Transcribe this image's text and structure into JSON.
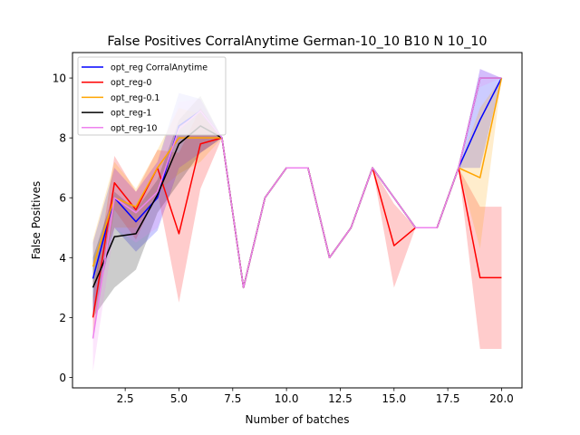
{
  "chart_data": {
    "type": "line",
    "title": "False Positives CorralAnytime German-10_10 B10 N 10_10",
    "xlabel": "Number of batches",
    "ylabel": "False Positives",
    "xlim": [
      0.05,
      20.95
    ],
    "ylim": [
      -0.35,
      10.85
    ],
    "xticks": [
      2.5,
      5.0,
      7.5,
      10.0,
      12.5,
      15.0,
      17.5,
      20.0
    ],
    "xtick_labels": [
      "2.5",
      "5.0",
      "7.5",
      "10.0",
      "12.5",
      "15.0",
      "17.5",
      "20.0"
    ],
    "yticks": [
      0,
      2,
      4,
      6,
      8,
      10
    ],
    "ytick_labels": [
      "0",
      "2",
      "4",
      "6",
      "8",
      "10"
    ],
    "grid": false,
    "legend_position": "top-left",
    "series": [
      {
        "name": "opt_reg CorralAnytime",
        "color": "#0000ff",
        "x": [
          1,
          2,
          3,
          4,
          5,
          6,
          7,
          8,
          9,
          10,
          11,
          12,
          13,
          14,
          15,
          16,
          17,
          18,
          19,
          20
        ],
        "values": [
          3.3,
          6.0,
          5.2,
          6.0,
          8.4,
          8.9,
          8.0,
          3.0,
          6.0,
          7.0,
          7.0,
          4.0,
          5.0,
          7.0,
          6.0,
          5.0,
          5.0,
          7.0,
          8.6,
          10.0
        ],
        "lower": [
          2.0,
          5.0,
          4.2,
          4.9,
          7.0,
          7.5,
          8.0,
          3.0,
          6.0,
          7.0,
          7.0,
          4.0,
          5.0,
          7.0,
          6.0,
          5.0,
          5.0,
          7.0,
          7.0,
          10.0
        ],
        "upper": [
          4.5,
          7.0,
          6.2,
          7.2,
          9.5,
          9.3,
          8.0,
          3.0,
          6.0,
          7.0,
          7.0,
          4.0,
          5.0,
          7.0,
          6.0,
          5.0,
          5.0,
          7.0,
          10.3,
          10.0
        ]
      },
      {
        "name": "opt_reg-0",
        "color": "#ff0000",
        "x": [
          1,
          2,
          3,
          4,
          5,
          6,
          7,
          8,
          9,
          10,
          11,
          12,
          13,
          14,
          15,
          16,
          17,
          18,
          19,
          20
        ],
        "values": [
          2.0,
          6.5,
          5.6,
          7.0,
          4.8,
          7.8,
          8.0,
          3.0,
          6.0,
          7.0,
          7.0,
          4.0,
          5.0,
          7.0,
          4.4,
          5.0,
          5.0,
          7.0,
          3.33,
          3.33
        ],
        "lower": [
          1.3,
          5.6,
          4.6,
          6.2,
          2.5,
          6.3,
          8.0,
          3.0,
          6.0,
          7.0,
          7.0,
          4.0,
          5.0,
          7.0,
          3.0,
          5.0,
          5.0,
          7.0,
          0.95,
          0.95
        ],
        "upper": [
          2.7,
          7.4,
          6.2,
          7.6,
          7.5,
          9.0,
          8.0,
          3.0,
          6.0,
          7.0,
          7.0,
          4.0,
          5.0,
          7.0,
          5.8,
          5.0,
          5.0,
          7.0,
          5.7,
          5.7
        ]
      },
      {
        "name": "opt_reg-0.1",
        "color": "#ffa500",
        "x": [
          1,
          2,
          3,
          4,
          5,
          6,
          7,
          8,
          9,
          10,
          11,
          12,
          13,
          14,
          15,
          16,
          17,
          18,
          19,
          20
        ],
        "values": [
          3.7,
          6.0,
          5.7,
          7.0,
          8.0,
          8.0,
          8.0,
          3.0,
          6.0,
          7.0,
          7.0,
          4.0,
          5.0,
          7.0,
          6.0,
          5.0,
          5.0,
          7.0,
          6.67,
          10.0
        ],
        "lower": [
          3.0,
          5.0,
          5.0,
          6.2,
          6.8,
          7.2,
          8.0,
          3.0,
          6.0,
          7.0,
          7.0,
          4.0,
          5.0,
          7.0,
          6.0,
          5.0,
          5.0,
          7.0,
          4.3,
          10.0
        ],
        "upper": [
          4.6,
          7.2,
          6.3,
          7.6,
          9.0,
          8.8,
          8.0,
          3.0,
          6.0,
          7.0,
          7.0,
          4.0,
          5.0,
          7.0,
          6.0,
          5.0,
          5.0,
          7.0,
          9.0,
          10.0
        ]
      },
      {
        "name": "opt_reg-1",
        "color": "#000000",
        "x": [
          1,
          2,
          3,
          4,
          5,
          6,
          7,
          8,
          9,
          10,
          11,
          12,
          13,
          14,
          15,
          16,
          17,
          18,
          19,
          20
        ],
        "values": [
          3.0,
          4.7,
          4.8,
          6.1,
          7.8,
          8.4,
          8.0,
          3.0,
          6.0,
          7.0,
          7.0,
          4.0,
          5.0,
          7.0,
          6.0,
          5.0,
          5.0,
          7.0,
          10.0,
          10.0
        ],
        "lower": [
          2.0,
          3.0,
          3.6,
          5.5,
          6.5,
          7.5,
          8.0,
          3.0,
          6.0,
          7.0,
          7.0,
          4.0,
          5.0,
          7.0,
          6.0,
          5.0,
          5.0,
          7.0,
          10.0,
          10.0
        ],
        "upper": [
          4.0,
          6.2,
          5.6,
          6.6,
          8.6,
          9.4,
          8.0,
          3.0,
          6.0,
          7.0,
          7.0,
          4.0,
          5.0,
          7.0,
          6.0,
          5.0,
          5.0,
          7.0,
          10.0,
          10.0
        ]
      },
      {
        "name": "opt_reg-10",
        "color": "#ee82ee",
        "x": [
          1,
          2,
          3,
          4,
          5,
          6,
          7,
          8,
          9,
          10,
          11,
          12,
          13,
          14,
          15,
          16,
          17,
          18,
          19,
          20
        ],
        "values": [
          1.3,
          6.0,
          5.5,
          6.2,
          8.3,
          8.9,
          8.0,
          3.0,
          6.0,
          7.0,
          7.0,
          4.0,
          5.0,
          7.0,
          6.0,
          5.0,
          5.0,
          7.0,
          10.0,
          10.0
        ],
        "lower": [
          0.2,
          5.0,
          4.5,
          5.0,
          7.0,
          7.5,
          8.0,
          3.0,
          6.0,
          7.0,
          7.0,
          4.0,
          5.0,
          7.0,
          6.0,
          5.0,
          5.0,
          7.0,
          9.7,
          10.0
        ],
        "upper": [
          2.5,
          7.0,
          6.2,
          7.2,
          9.2,
          9.3,
          8.0,
          3.0,
          6.0,
          7.0,
          7.0,
          4.0,
          5.0,
          7.0,
          6.0,
          5.0,
          5.0,
          7.0,
          10.3,
          10.0
        ]
      }
    ]
  }
}
